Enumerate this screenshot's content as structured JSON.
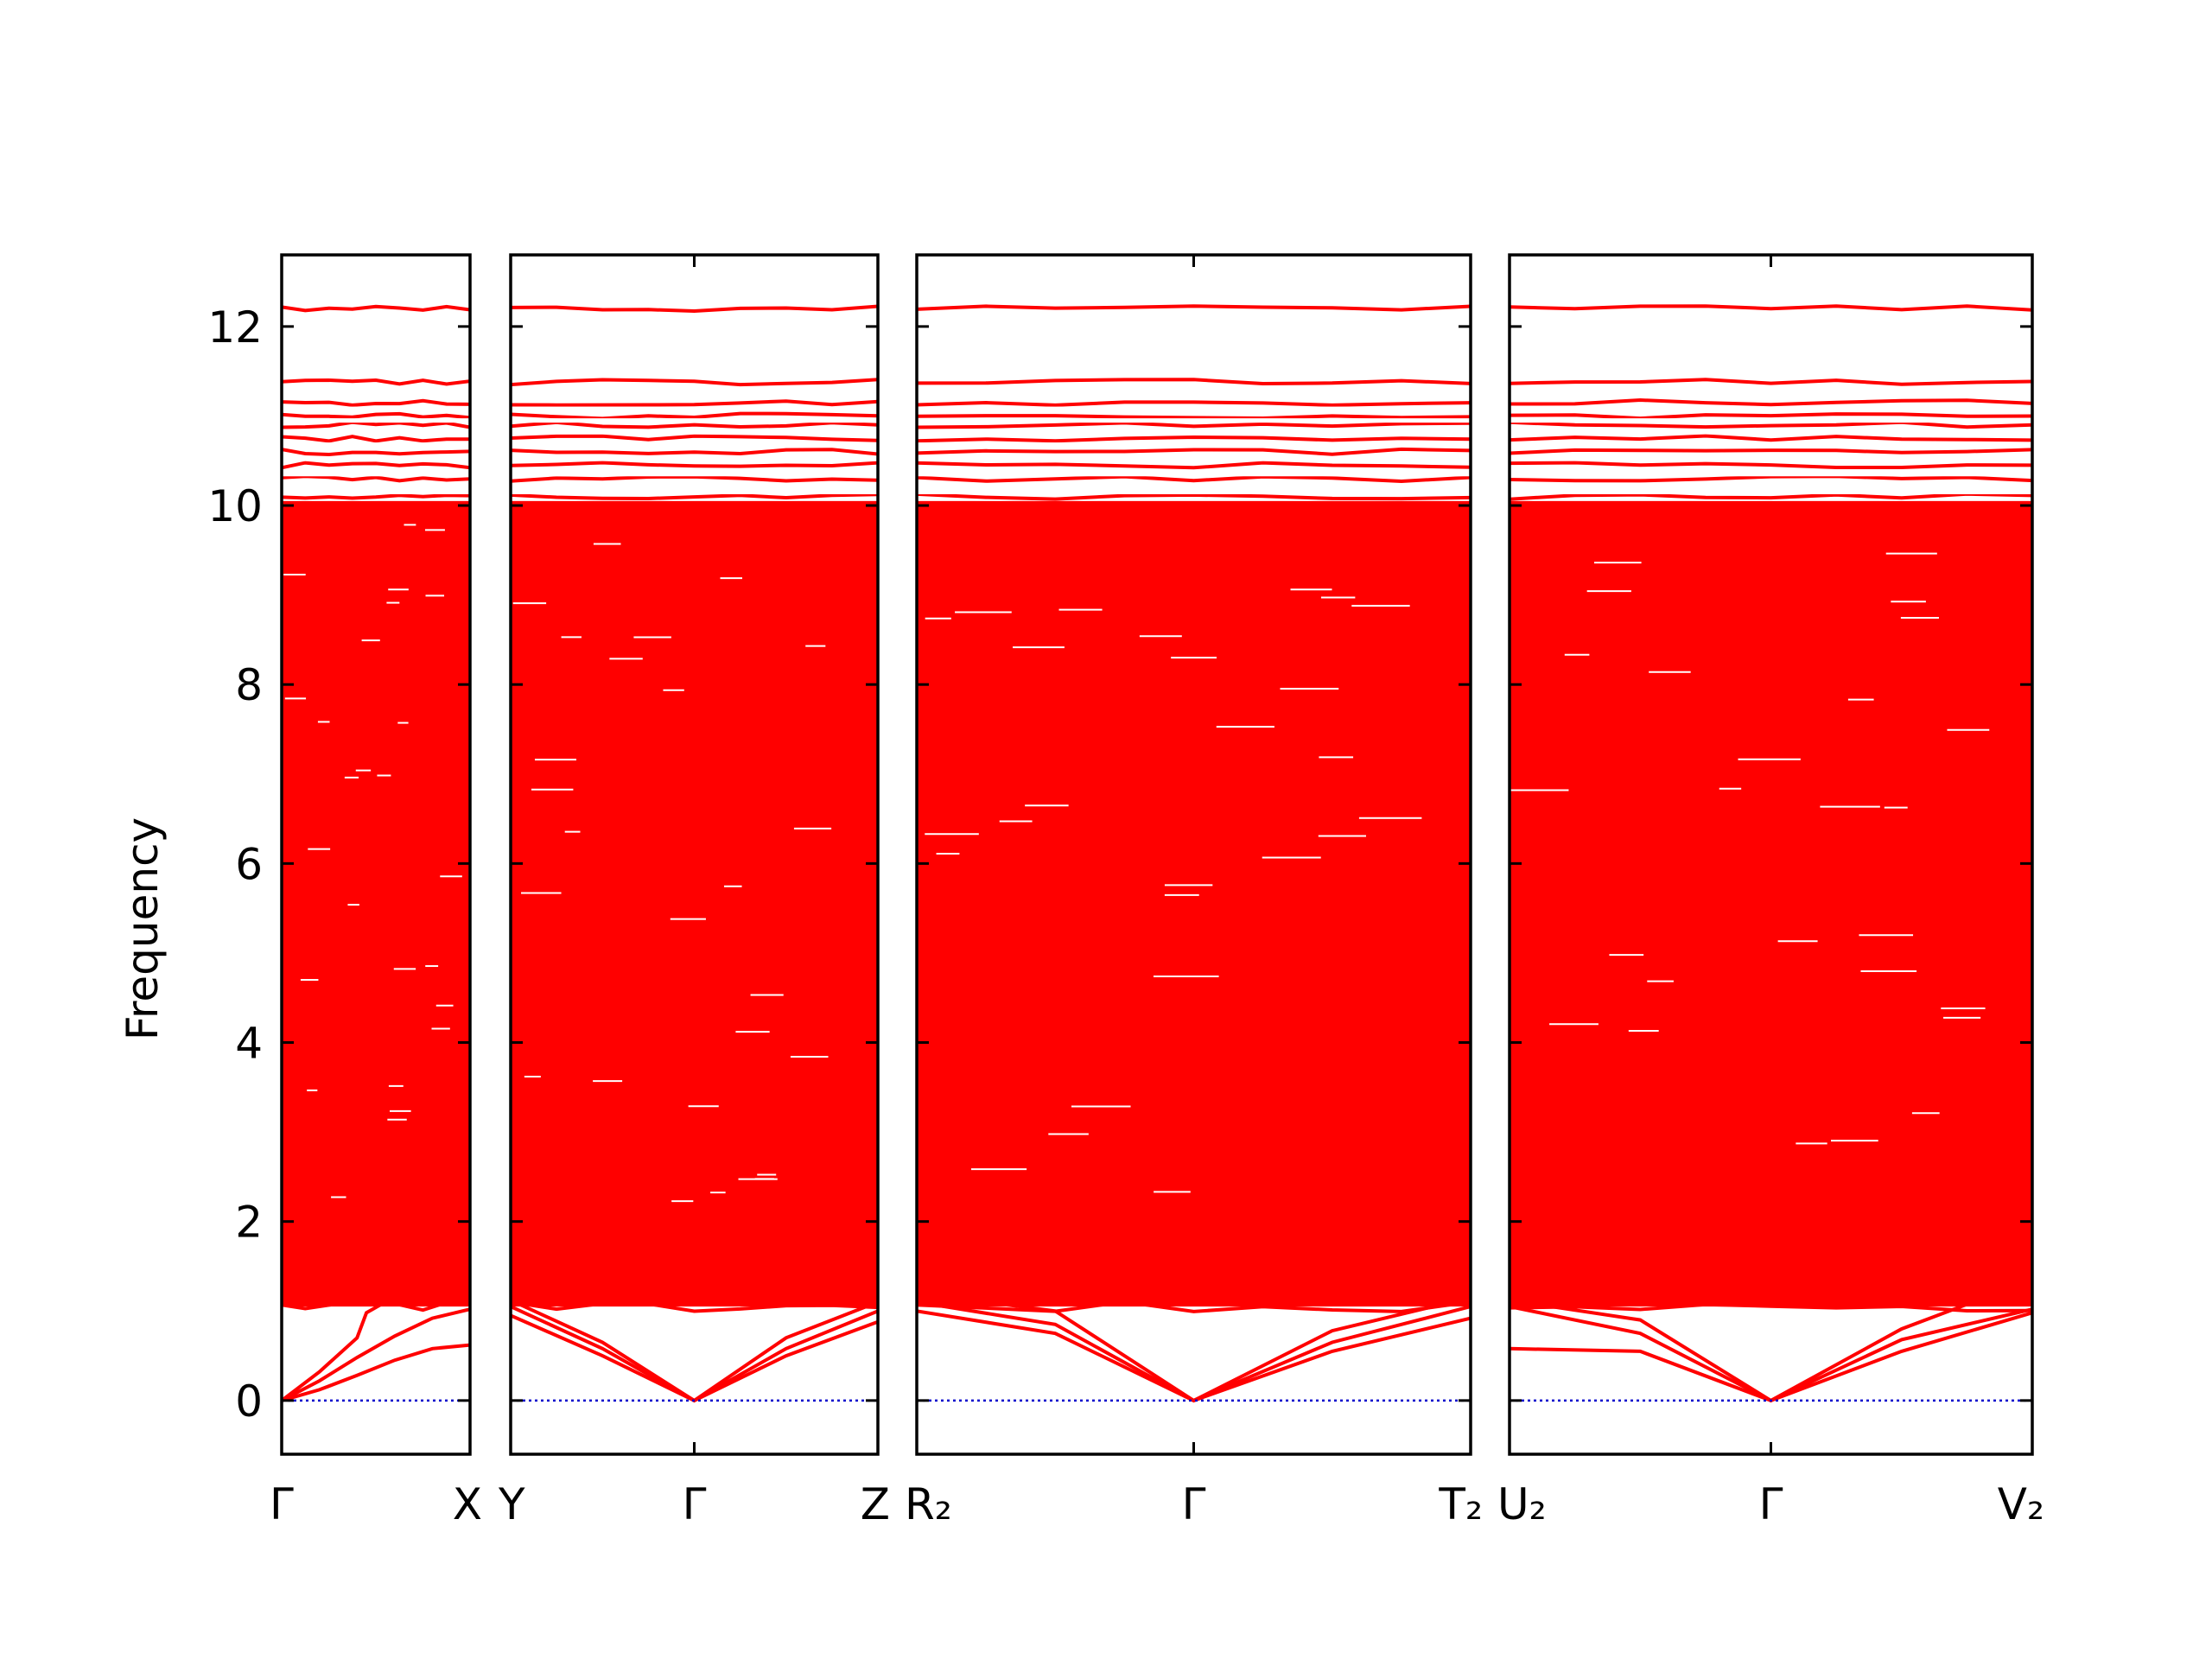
{
  "chart_data": {
    "type": "line",
    "title": "",
    "xlabel": "",
    "ylabel": "Frequency",
    "ylim": [
      -0.6,
      12.8
    ],
    "yticks": [
      0,
      2,
      4,
      6,
      8,
      10,
      12
    ],
    "grid": false,
    "legend": "none",
    "colors": {
      "band": "#ff0000",
      "zero_line": "#0000cc",
      "axes": "#000000"
    },
    "panels": [
      {
        "kpoints": [
          "Γ",
          "X"
        ],
        "kpoint_positions": [
          0,
          1
        ],
        "x_range": [
          0,
          1
        ],
        "acoustic_branches": [
          {
            "name": "",
            "points": [
              [
                0,
                0.0
              ],
              [
                0.2,
                0.12
              ],
              [
                0.4,
                0.28
              ],
              [
                0.6,
                0.45
              ],
              [
                0.8,
                0.58
              ],
              [
                1.0,
                0.62
              ]
            ]
          },
          {
            "name": "",
            "points": [
              [
                0,
                0.0
              ],
              [
                0.2,
                0.22
              ],
              [
                0.4,
                0.48
              ],
              [
                0.6,
                0.72
              ],
              [
                0.8,
                0.92
              ],
              [
                1.0,
                1.02
              ]
            ]
          },
          {
            "name": "",
            "points": [
              [
                0,
                0.0
              ],
              [
                0.2,
                0.32
              ],
              [
                0.4,
                0.7
              ],
              [
                0.45,
                0.98
              ],
              [
                0.55,
                1.1
              ],
              [
                1.0,
                1.18
              ]
            ]
          }
        ]
      },
      {
        "kpoints": [
          "Y",
          "Γ",
          "Z"
        ],
        "kpoint_positions": [
          0,
          1,
          2
        ],
        "x_range": [
          0,
          2
        ],
        "acoustic_branches": [
          {
            "name": "",
            "points": [
              [
                0,
                0.95
              ],
              [
                0.5,
                0.5
              ],
              [
                1.0,
                0.0
              ],
              [
                1.5,
                0.5
              ],
              [
                2.0,
                0.88
              ]
            ]
          },
          {
            "name": "",
            "points": [
              [
                0,
                1.05
              ],
              [
                0.5,
                0.58
              ],
              [
                1.0,
                0.0
              ],
              [
                1.5,
                0.58
              ],
              [
                2.0,
                1.0
              ]
            ]
          },
          {
            "name": "",
            "points": [
              [
                0,
                1.12
              ],
              [
                0.5,
                0.65
              ],
              [
                1.0,
                0.0
              ],
              [
                1.5,
                0.7
              ],
              [
                2.0,
                1.1
              ]
            ]
          }
        ]
      },
      {
        "kpoints": [
          "R₂",
          "Γ",
          "T₂"
        ],
        "kpoint_positions": [
          0,
          1,
          2
        ],
        "x_range": [
          0,
          2
        ],
        "acoustic_branches": [
          {
            "name": "",
            "points": [
              [
                0,
                1.0
              ],
              [
                0.5,
                0.75
              ],
              [
                1.0,
                0.0
              ],
              [
                1.5,
                0.55
              ],
              [
                2.0,
                0.92
              ]
            ]
          },
          {
            "name": "",
            "points": [
              [
                0,
                1.1
              ],
              [
                0.5,
                0.85
              ],
              [
                1.0,
                0.0
              ],
              [
                1.5,
                0.65
              ],
              [
                2.0,
                1.05
              ]
            ]
          },
          {
            "name": "",
            "points": [
              [
                0,
                1.2
              ],
              [
                0.5,
                1.0
              ],
              [
                1.0,
                0.0
              ],
              [
                1.5,
                0.78
              ],
              [
                2.0,
                1.15
              ]
            ]
          }
        ]
      },
      {
        "kpoints": [
          "U₂",
          "Γ",
          "V₂"
        ],
        "kpoint_positions": [
          0,
          1,
          2
        ],
        "x_range": [
          0,
          2
        ],
        "acoustic_branches": [
          {
            "name": "",
            "points": [
              [
                0,
                0.58
              ],
              [
                0.5,
                0.55
              ],
              [
                1.0,
                0.0
              ],
              [
                1.5,
                0.55
              ],
              [
                2.0,
                0.98
              ]
            ]
          },
          {
            "name": "",
            "points": [
              [
                0,
                1.05
              ],
              [
                0.5,
                0.75
              ],
              [
                1.0,
                0.0
              ],
              [
                1.5,
                0.68
              ],
              [
                2.0,
                1.02
              ]
            ]
          },
          {
            "name": "",
            "points": [
              [
                0,
                1.12
              ],
              [
                0.5,
                0.9
              ],
              [
                1.0,
                0.0
              ],
              [
                1.5,
                0.8
              ],
              [
                2.0,
                1.35
              ]
            ]
          }
        ]
      }
    ],
    "optical_bands": {
      "note_range": [
        1.0,
        11.4
      ],
      "flat_levels": [
        1.05,
        1.15,
        1.25,
        1.35,
        1.45,
        1.55,
        1.65,
        1.75,
        1.85,
        1.95,
        2.05,
        2.2,
        2.35,
        2.5,
        2.7,
        2.9,
        3.1,
        3.3,
        3.5,
        3.7,
        3.9,
        4.1,
        4.3,
        4.5,
        4.7,
        4.9,
        5.1,
        5.3,
        5.5,
        5.7,
        5.9,
        6.1,
        6.3,
        6.5,
        6.7,
        6.9,
        7.1,
        7.3,
        7.5,
        7.7,
        7.9,
        8.1,
        8.3,
        8.5,
        8.7,
        8.9,
        9.1,
        9.3,
        9.5,
        9.7,
        9.9,
        10.1,
        10.3,
        10.45,
        10.6,
        10.75,
        10.9,
        11.0,
        11.15,
        11.38,
        12.2
      ]
    }
  }
}
